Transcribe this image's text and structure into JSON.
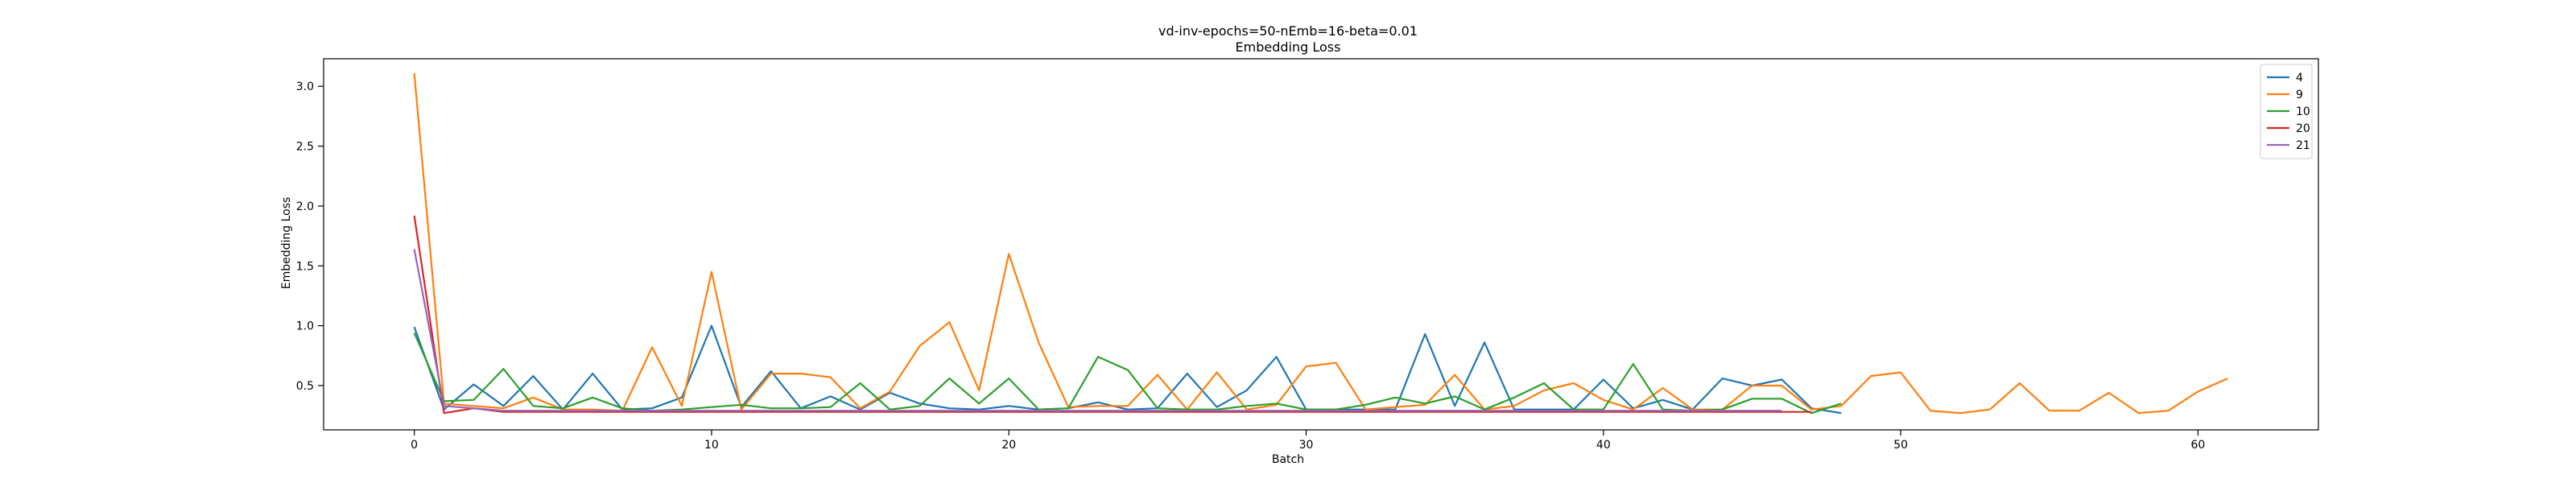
{
  "chart_data": {
    "type": "line",
    "title": "vd-inv-epochs=50-nEmb=16-beta=0.01",
    "subtitle": "Embedding Loss",
    "xlabel": "Batch",
    "ylabel": "Embedding Loss",
    "xlim": [
      -3.05,
      64.05
    ],
    "ylim": [
      0.13,
      3.23
    ],
    "xticks": [
      0,
      10,
      20,
      30,
      40,
      50,
      60
    ],
    "yticks": [
      0.5,
      1.0,
      1.5,
      2.0,
      2.5,
      3.0
    ],
    "ytick_labels": [
      "0.5",
      "1.0",
      "1.5",
      "2.0",
      "2.5",
      "3.0"
    ],
    "grid": false,
    "legend_position": "top-right",
    "series": [
      {
        "name": "4",
        "color": "#1f77b4",
        "values": [
          0.99,
          0.3,
          0.51,
          0.33,
          0.58,
          0.3,
          0.6,
          0.3,
          0.31,
          0.4,
          1.0,
          0.32,
          0.62,
          0.31,
          0.41,
          0.3,
          0.44,
          0.35,
          0.31,
          0.3,
          0.33,
          0.3,
          0.31,
          0.36,
          0.3,
          0.31,
          0.6,
          0.32,
          0.46,
          0.74,
          0.3,
          0.3,
          0.3,
          0.3,
          0.93,
          0.33,
          0.86,
          0.3,
          0.3,
          0.3,
          0.55,
          0.31,
          0.38,
          0.3,
          0.56,
          0.5,
          0.55,
          0.31,
          0.27
        ]
      },
      {
        "name": "9",
        "color": "#ff7f0e",
        "values": [
          3.11,
          0.35,
          0.33,
          0.31,
          0.4,
          0.3,
          0.3,
          0.29,
          0.82,
          0.33,
          1.45,
          0.3,
          0.6,
          0.6,
          0.57,
          0.31,
          0.45,
          0.83,
          1.03,
          0.46,
          1.6,
          0.86,
          0.32,
          0.33,
          0.33,
          0.59,
          0.3,
          0.61,
          0.3,
          0.34,
          0.66,
          0.69,
          0.3,
          0.32,
          0.34,
          0.59,
          0.3,
          0.33,
          0.46,
          0.52,
          0.38,
          0.3,
          0.48,
          0.3,
          0.3,
          0.5,
          0.5,
          0.3,
          0.33,
          0.58,
          0.61,
          0.29,
          0.27,
          0.3,
          0.52,
          0.29,
          0.29,
          0.44,
          0.27,
          0.29,
          0.45,
          0.56
        ]
      },
      {
        "name": "10",
        "color": "#2ca02c",
        "values": [
          0.94,
          0.37,
          0.38,
          0.64,
          0.33,
          0.31,
          0.4,
          0.31,
          0.29,
          0.3,
          0.32,
          0.34,
          0.31,
          0.31,
          0.32,
          0.52,
          0.3,
          0.33,
          0.56,
          0.35,
          0.56,
          0.3,
          0.31,
          0.74,
          0.63,
          0.31,
          0.3,
          0.3,
          0.33,
          0.35,
          0.3,
          0.3,
          0.34,
          0.4,
          0.35,
          0.41,
          0.3,
          0.4,
          0.52,
          0.3,
          0.3,
          0.68,
          0.3,
          0.29,
          0.3,
          0.39,
          0.39,
          0.27,
          0.35
        ]
      },
      {
        "name": "20",
        "color": "#d62728",
        "values": [
          1.92,
          0.27,
          0.31,
          0.28,
          0.28,
          0.28,
          0.28,
          0.28,
          0.28,
          0.28,
          0.28,
          0.28,
          0.28,
          0.28,
          0.28,
          0.28,
          0.28,
          0.28,
          0.28,
          0.28,
          0.28,
          0.28,
          0.28,
          0.28,
          0.28,
          0.28,
          0.28,
          0.28,
          0.28,
          0.28,
          0.28,
          0.28,
          0.28,
          0.28,
          0.28,
          0.28,
          0.28,
          0.28,
          0.28,
          0.28,
          0.28,
          0.28,
          0.28,
          0.28,
          0.28,
          0.28,
          0.28,
          0.28
        ]
      },
      {
        "name": "21",
        "color": "#9467bd",
        "values": [
          1.64,
          0.33,
          0.31,
          0.29,
          0.29,
          0.29,
          0.29,
          0.29,
          0.29,
          0.29,
          0.29,
          0.29,
          0.29,
          0.29,
          0.29,
          0.29,
          0.29,
          0.29,
          0.29,
          0.29,
          0.29,
          0.29,
          0.29,
          0.29,
          0.29,
          0.29,
          0.29,
          0.29,
          0.29,
          0.29,
          0.29,
          0.29,
          0.29,
          0.29,
          0.29,
          0.29,
          0.29,
          0.29,
          0.29,
          0.29,
          0.29,
          0.29,
          0.29,
          0.29,
          0.29,
          0.29,
          0.29
        ]
      }
    ]
  }
}
